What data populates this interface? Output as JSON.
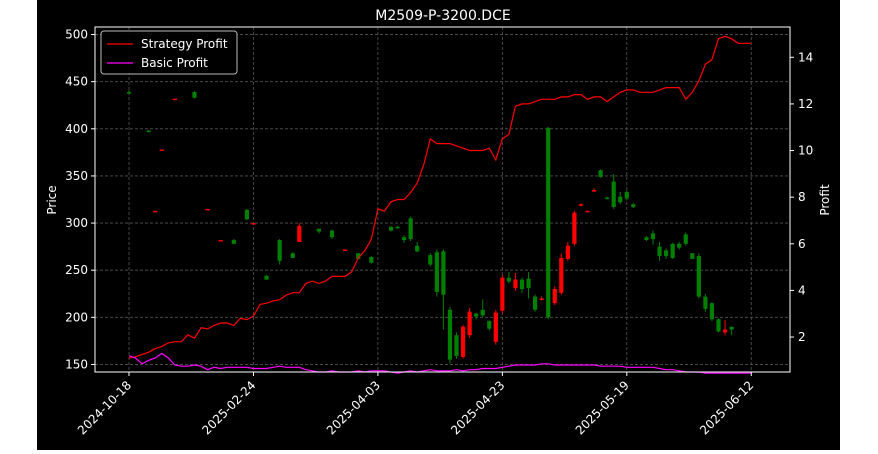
{
  "chart_data": {
    "type": "candlestick",
    "title": "M2509-P-3200.DCE",
    "ylabel_left": "Price",
    "ylabel_right": "Profit",
    "xlabel": "",
    "ylim_left": [
      142,
      508
    ],
    "ylim_right": [
      0.5,
      15.3
    ],
    "yticks_left": [
      150,
      200,
      250,
      300,
      350,
      400,
      450,
      500
    ],
    "yticks_right": [
      2,
      4,
      6,
      8,
      10,
      12,
      14
    ],
    "grid": true,
    "legend_position": "upper-left",
    "x_tick_labels": [
      "2024-10-18",
      "2025-02-24",
      "2025-04-03",
      "2025-04-23",
      "2025-05-19",
      "2025-06-12"
    ],
    "x_tick_index": [
      0,
      19,
      38,
      57,
      76,
      95
    ],
    "n_bars": 96,
    "colors": {
      "up": "#ff0000",
      "down": "#008000",
      "strategy": "#ff0000",
      "basic": "#ff00ff",
      "background": "#000000",
      "grid": "#555555"
    },
    "series": [
      {
        "name": "Strategy Profit",
        "axis": "right",
        "color": "#ff0000",
        "values": [
          1.1,
          1.15,
          1.25,
          1.35,
          1.5,
          1.6,
          1.75,
          1.8,
          1.8,
          2.1,
          1.95,
          2.4,
          2.35,
          2.5,
          2.6,
          2.6,
          2.5,
          2.8,
          2.75,
          2.9,
          3.4,
          3.45,
          3.55,
          3.6,
          3.8,
          3.9,
          3.9,
          4.3,
          4.4,
          4.3,
          4.4,
          4.6,
          4.6,
          4.6,
          4.8,
          5.4,
          5.7,
          6.2,
          7.5,
          7.4,
          7.8,
          7.9,
          7.9,
          8.2,
          8.6,
          9.4,
          10.5,
          10.3,
          10.3,
          10.3,
          10.2,
          10.1,
          10.0,
          10.0,
          10.0,
          10.1,
          9.6,
          10.5,
          10.7,
          11.9,
          12.0,
          12.0,
          12.1,
          12.2,
          12.2,
          12.2,
          12.3,
          12.3,
          12.4,
          12.4,
          12.2,
          12.3,
          12.3,
          12.1,
          12.3,
          12.5,
          12.6,
          12.6,
          12.5,
          12.5,
          12.5,
          12.6,
          12.7,
          12.7,
          12.7,
          12.2,
          12.5,
          13.0,
          13.7,
          13.9,
          14.8,
          14.9,
          14.8,
          14.6,
          14.6,
          14.6
        ]
      },
      {
        "name": "Basic Profit",
        "axis": "right",
        "color": "#ff00ff",
        "values": [
          1.2,
          1.1,
          0.85,
          1.0,
          1.1,
          1.3,
          1.1,
          0.8,
          0.75,
          0.75,
          0.8,
          0.75,
          0.6,
          0.7,
          0.65,
          0.7,
          0.7,
          0.7,
          0.7,
          0.65,
          0.65,
          0.65,
          0.7,
          0.75,
          0.7,
          0.7,
          0.7,
          0.6,
          0.55,
          0.5,
          0.5,
          0.55,
          0.5,
          0.5,
          0.5,
          0.55,
          0.5,
          0.55,
          0.55,
          0.55,
          0.5,
          0.45,
          0.5,
          0.55,
          0.5,
          0.55,
          0.6,
          0.55,
          0.55,
          0.55,
          0.6,
          0.55,
          0.6,
          0.6,
          0.65,
          0.65,
          0.65,
          0.7,
          0.75,
          0.8,
          0.8,
          0.8,
          0.8,
          0.85,
          0.85,
          0.8,
          0.8,
          0.8,
          0.8,
          0.8,
          0.8,
          0.8,
          0.75,
          0.75,
          0.75,
          0.75,
          0.7,
          0.7,
          0.7,
          0.7,
          0.7,
          0.65,
          0.6,
          0.6,
          0.55,
          0.5,
          0.5,
          0.5,
          0.45,
          0.45,
          0.45,
          0.45,
          0.45,
          0.45,
          0.45,
          0.45
        ]
      }
    ],
    "candles": [
      [
        0,
        439,
        438,
        441,
        437
      ],
      [
        3,
        398,
        397,
        399,
        397
      ],
      [
        4,
        313,
        313,
        313,
        313
      ],
      [
        5,
        378,
        378,
        378,
        378
      ],
      [
        7,
        432,
        432,
        432,
        432
      ],
      [
        10,
        439,
        433,
        440,
        432
      ],
      [
        12,
        315,
        315,
        315,
        315
      ],
      [
        14,
        282,
        282,
        282,
        282
      ],
      [
        16,
        282,
        278,
        283,
        278
      ],
      [
        18,
        314,
        304,
        315,
        303
      ],
      [
        19,
        300,
        300,
        300,
        300
      ],
      [
        21,
        244,
        240,
        245,
        240
      ],
      [
        23,
        282,
        260,
        283,
        256
      ],
      [
        25,
        268,
        263,
        269,
        263
      ],
      [
        26,
        280,
        297,
        300,
        280
      ],
      [
        29,
        294,
        291,
        294,
        289
      ],
      [
        31,
        292,
        285,
        293,
        283
      ],
      [
        33,
        272,
        272,
        272,
        272
      ],
      [
        35,
        268,
        262,
        268,
        261
      ],
      [
        37,
        264,
        258,
        265,
        257
      ],
      [
        40,
        296,
        292,
        297,
        291
      ],
      [
        41,
        296,
        295,
        297,
        294
      ],
      [
        42,
        285,
        282,
        287,
        279
      ],
      [
        43,
        305,
        283,
        307,
        281
      ],
      [
        44,
        276,
        270,
        280,
        269
      ],
      [
        46,
        266,
        256,
        268,
        254
      ],
      [
        47,
        269,
        227,
        272,
        222
      ],
      [
        48,
        270,
        224,
        272,
        187
      ],
      [
        49,
        208,
        155,
        211,
        151
      ],
      [
        50,
        181,
        159,
        184,
        156
      ],
      [
        51,
        158,
        190,
        192,
        156
      ],
      [
        52,
        181,
        206,
        210,
        178
      ],
      [
        53,
        204,
        201,
        205,
        198
      ],
      [
        54,
        208,
        202,
        219,
        200
      ],
      [
        55,
        196,
        188,
        197,
        186
      ],
      [
        56,
        174,
        205,
        208,
        171
      ],
      [
        57,
        207,
        242,
        245,
        204
      ],
      [
        58,
        242,
        238,
        248,
        236
      ],
      [
        59,
        231,
        240,
        247,
        228
      ],
      [
        60,
        240,
        230,
        242,
        226
      ],
      [
        61,
        241,
        231,
        248,
        220
      ],
      [
        62,
        222,
        208,
        224,
        206
      ],
      [
        63,
        220,
        220,
        222,
        218
      ],
      [
        64,
        401,
        200,
        402,
        198
      ],
      [
        65,
        215,
        230,
        233,
        213
      ],
      [
        66,
        226,
        263,
        268,
        224
      ],
      [
        67,
        262,
        276,
        280,
        260
      ],
      [
        68,
        278,
        311,
        313,
        276
      ],
      [
        69,
        319,
        320,
        321,
        318
      ],
      [
        70,
        312,
        313,
        313,
        312
      ],
      [
        71,
        334,
        335,
        337,
        333
      ],
      [
        72,
        356,
        349,
        357,
        348
      ],
      [
        73,
        327,
        326,
        328,
        325
      ],
      [
        74,
        344,
        317,
        352,
        315
      ],
      [
        75,
        328,
        322,
        333,
        320
      ],
      [
        76,
        333,
        326,
        335,
        324
      ],
      [
        77,
        320,
        317,
        321,
        316
      ],
      [
        79,
        285,
        282,
        286,
        281
      ],
      [
        80,
        289,
        283,
        292,
        277
      ],
      [
        81,
        275,
        265,
        280,
        260
      ],
      [
        82,
        271,
        265,
        273,
        262
      ],
      [
        83,
        278,
        263,
        279,
        262
      ],
      [
        84,
        278,
        274,
        280,
        272
      ],
      [
        85,
        288,
        278,
        290,
        276
      ],
      [
        86,
        268,
        262,
        268,
        262
      ],
      [
        87,
        265,
        222,
        268,
        220
      ],
      [
        88,
        222,
        209,
        225,
        206
      ],
      [
        89,
        215,
        198,
        216,
        196
      ],
      [
        90,
        198,
        185,
        199,
        184
      ],
      [
        91,
        184,
        187,
        197,
        181
      ],
      [
        92,
        190,
        187,
        190,
        181
      ]
    ]
  },
  "legend": {
    "strategy_label": "Strategy Profit",
    "basic_label": "Basic Profit"
  }
}
